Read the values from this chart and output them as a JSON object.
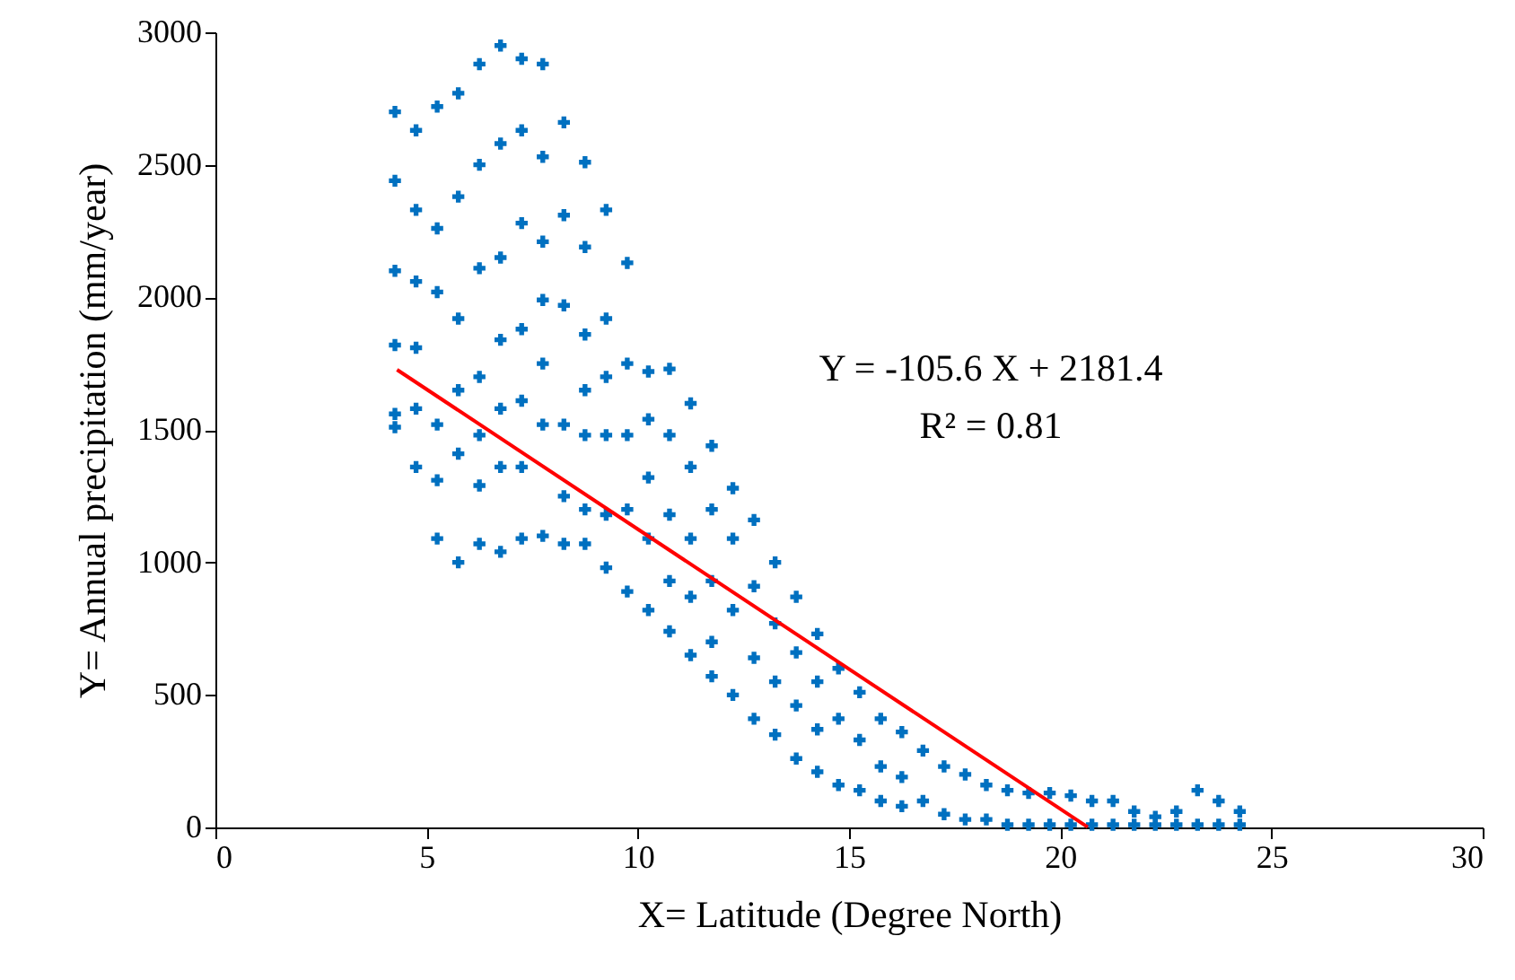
{
  "chart_data": {
    "type": "scatter",
    "xlabel": "X= Latitude (Degree North)",
    "ylabel": "Y= Annual  precipitation  (mm/year)",
    "xlim": [
      0,
      30
    ],
    "xticks": [
      0,
      5,
      10,
      15,
      20,
      25,
      30
    ],
    "ylim": [
      0,
      3000
    ],
    "yticks": [
      0,
      500,
      1000,
      1500,
      2000,
      2500,
      3000
    ],
    "marker": "cross",
    "annotations": [
      "Y = -105.6 X + 2181.4",
      "R² = 0.81"
    ],
    "series": [
      {
        "color": "#0070c0",
        "x": [
          4.25,
          4.25,
          4.25,
          4.25,
          4.25,
          4.25,
          4.75,
          4.75,
          4.75,
          4.75,
          4.75,
          4.75,
          5.25,
          5.25,
          5.25,
          5.25,
          5.25,
          5.25,
          5.75,
          5.75,
          5.75,
          5.75,
          5.75,
          5.75,
          6.25,
          6.25,
          6.25,
          6.25,
          6.25,
          6.25,
          6.25,
          6.75,
          6.75,
          6.75,
          6.75,
          6.75,
          6.75,
          6.75,
          7.25,
          7.25,
          7.25,
          7.25,
          7.25,
          7.25,
          7.25,
          7.75,
          7.75,
          7.75,
          7.75,
          7.75,
          7.75,
          7.75,
          8.25,
          8.25,
          8.25,
          8.25,
          8.25,
          8.25,
          8.75,
          8.75,
          8.75,
          8.75,
          8.75,
          8.75,
          8.75,
          9.25,
          9.25,
          9.25,
          9.25,
          9.25,
          9.25,
          9.75,
          9.75,
          9.75,
          9.75,
          9.75,
          10.25,
          10.25,
          10.25,
          10.25,
          10.25,
          10.75,
          10.75,
          10.75,
          10.75,
          10.75,
          11.25,
          11.25,
          11.25,
          11.25,
          11.25,
          11.75,
          11.75,
          11.75,
          11.75,
          11.75,
          12.25,
          12.25,
          12.25,
          12.25,
          12.75,
          12.75,
          12.75,
          12.75,
          13.25,
          13.25,
          13.25,
          13.25,
          13.75,
          13.75,
          13.75,
          13.75,
          14.25,
          14.25,
          14.25,
          14.25,
          14.75,
          14.75,
          14.75,
          15.25,
          15.25,
          15.25,
          15.75,
          15.75,
          15.75,
          16.25,
          16.25,
          16.25,
          16.75,
          16.75,
          17.25,
          17.25,
          17.75,
          17.75,
          18.25,
          18.25,
          18.75,
          18.75,
          19.25,
          19.25,
          19.75,
          19.75,
          20.25,
          20.25,
          20.75,
          20.75,
          21.25,
          21.25,
          21.75,
          21.75,
          22.25,
          22.25,
          22.75,
          22.75,
          23.25,
          23.25,
          23.75,
          23.75,
          24.25,
          24.25
        ],
        "values": [
          2700,
          2440,
          2100,
          1820,
          1560,
          1510,
          2630,
          2330,
          2060,
          1810,
          1580,
          1360,
          2720,
          2260,
          2020,
          1520,
          1310,
          1090,
          2770,
          2380,
          1920,
          1650,
          1410,
          1000,
          2880,
          2500,
          2110,
          1700,
          1480,
          1290,
          1070,
          2950,
          2580,
          2150,
          1840,
          1580,
          1360,
          1040,
          2900,
          2630,
          2280,
          1880,
          1610,
          1360,
          1090,
          2880,
          2530,
          2210,
          1990,
          1750,
          1520,
          1100,
          2660,
          2310,
          1970,
          1520,
          1250,
          1070,
          2510,
          2190,
          1860,
          1650,
          1480,
          1200,
          1070,
          2330,
          1920,
          1700,
          1480,
          1180,
          980,
          2130,
          1750,
          1480,
          1200,
          890,
          1720,
          1540,
          1320,
          1090,
          820,
          1730,
          1480,
          1180,
          930,
          740,
          1600,
          1360,
          1090,
          870,
          650,
          1440,
          1200,
          930,
          700,
          570,
          1280,
          1090,
          820,
          500,
          1160,
          910,
          640,
          410,
          1000,
          770,
          550,
          350,
          870,
          660,
          460,
          260,
          730,
          550,
          370,
          210,
          600,
          410,
          160,
          510,
          330,
          140,
          410,
          230,
          100,
          360,
          190,
          80,
          290,
          100,
          230,
          50,
          200,
          30,
          160,
          30,
          140,
          10,
          130,
          10,
          130,
          10,
          120,
          10,
          100,
          10,
          100,
          10,
          60,
          10,
          40,
          10,
          60,
          10,
          140,
          10,
          100,
          10,
          60,
          10
        ]
      },
      {
        "type": "line",
        "marker": "none",
        "color": "#ff0000",
        "x": [
          4.3,
          20.65
        ],
        "values": [
          1727,
          1
        ]
      }
    ]
  }
}
